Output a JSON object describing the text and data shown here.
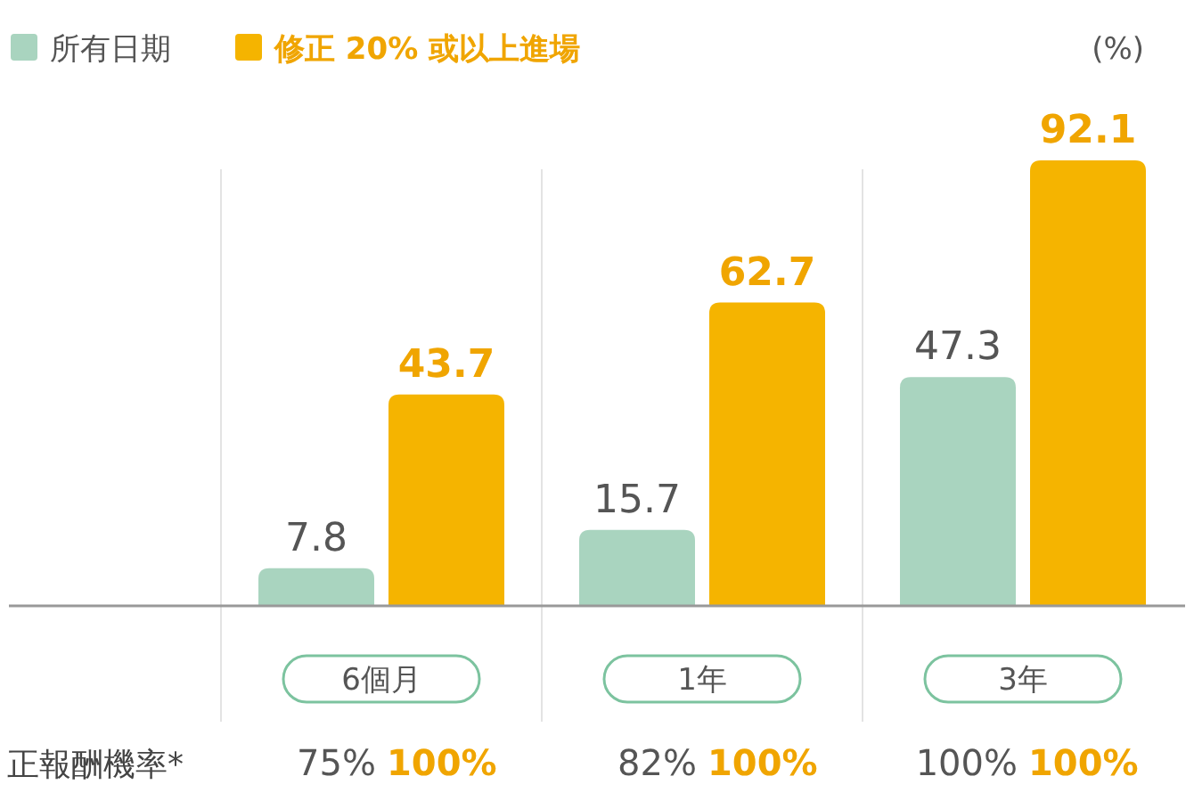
{
  "chart_data": {
    "type": "bar",
    "ylabel": "(%)",
    "categories": [
      "6個月",
      "1年",
      "3年"
    ],
    "series": [
      {
        "name": "所有日期",
        "color": "#a9d4bf",
        "values": [
          7.8,
          15.7,
          47.3
        ]
      },
      {
        "name": "修正 20% 或以上進場",
        "color": "#f5b400",
        "values": [
          43.7,
          62.7,
          92.1
        ]
      }
    ],
    "data_labels": true,
    "legend": "top left",
    "grid": "x",
    "annotations": [
      "正報酬機率*",
      "75%",
      "100%",
      "82%",
      "100%",
      "100%",
      "100%"
    ]
  }
}
